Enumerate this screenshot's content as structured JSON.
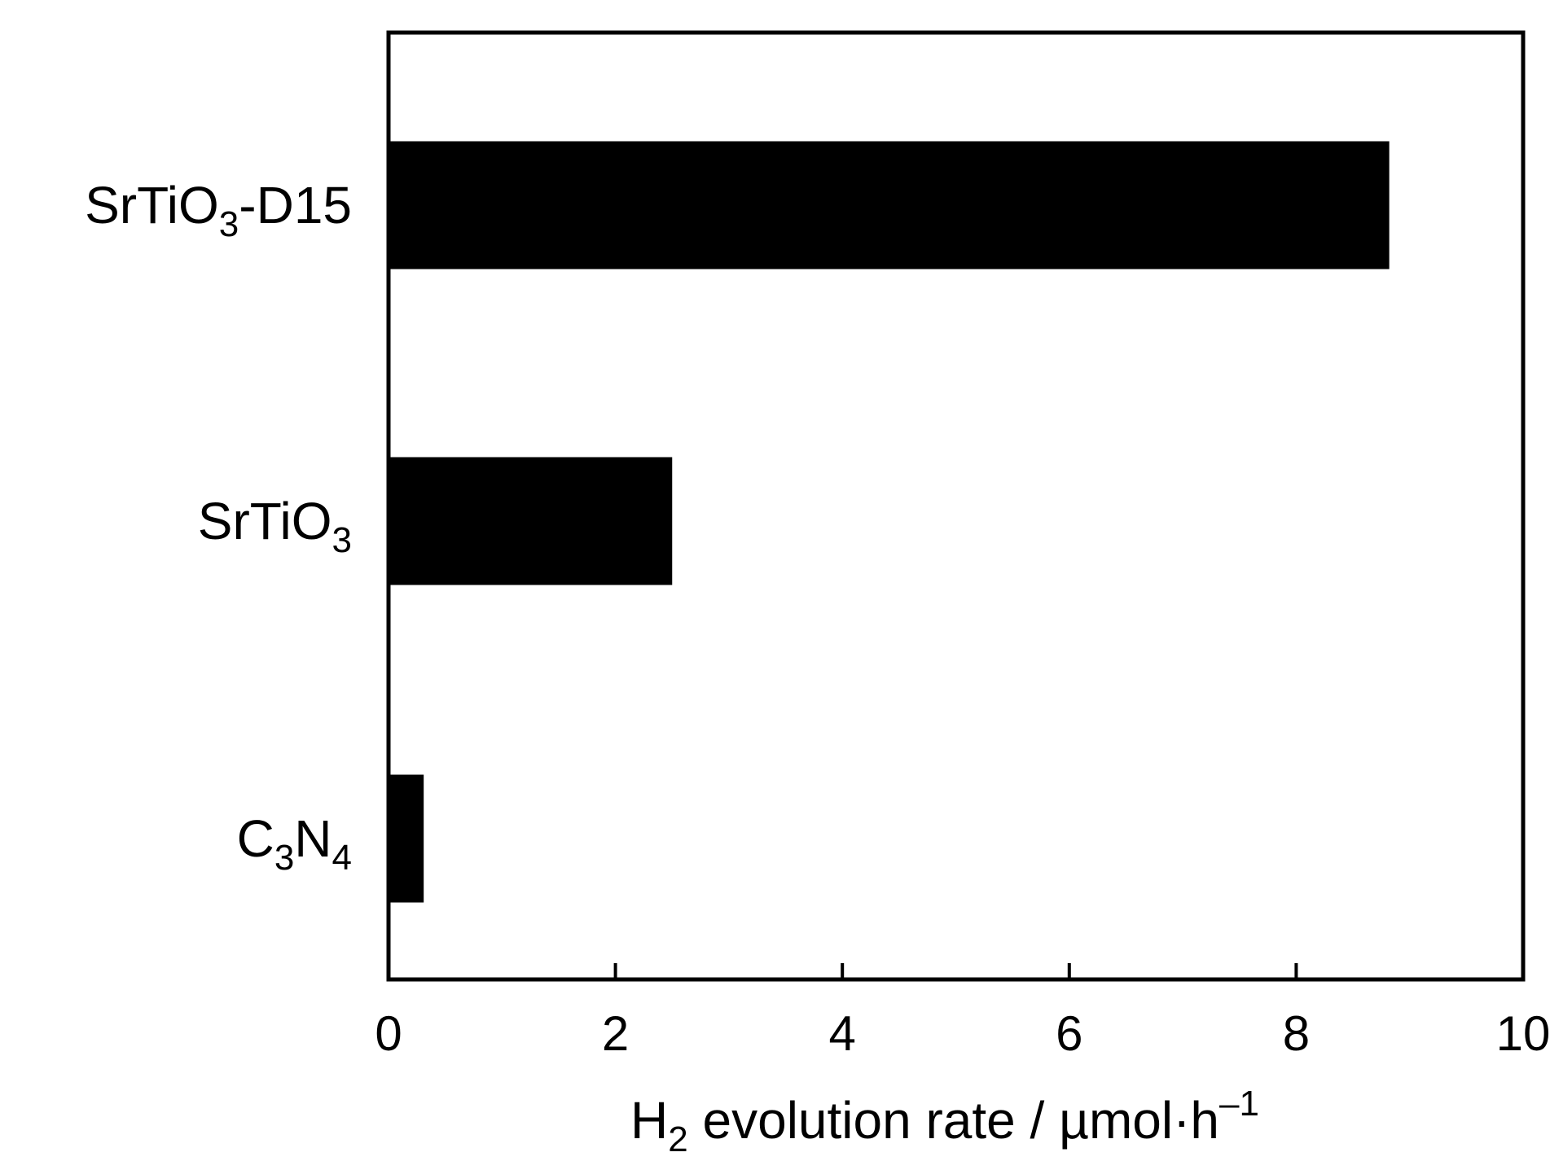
{
  "chart_data": {
    "type": "bar",
    "orientation": "horizontal",
    "categories": [
      {
        "base": "SrTiO",
        "sub": "3",
        "suffix": "-D15"
      },
      {
        "base": "SrTiO",
        "sub": "3",
        "suffix": ""
      },
      {
        "base": "C",
        "sub": "3",
        "base2": "N",
        "sub2": "4"
      }
    ],
    "values": [
      8.82,
      2.5,
      0.31
    ],
    "xlim": [
      0,
      10
    ],
    "xticks": [
      "0",
      "2",
      "4",
      "6",
      "8",
      "10"
    ],
    "xlabel": {
      "prefix": "H",
      "sub": "2",
      "middle": " evolution rate / µmol·h",
      "sup": "–1"
    },
    "bar_color": "#000000",
    "grid": false
  }
}
